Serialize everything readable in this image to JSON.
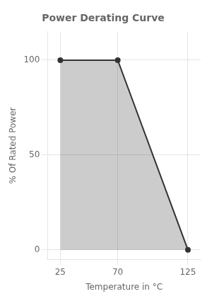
{
  "chart_data": {
    "type": "line",
    "title": "Power Derating Curve",
    "x": [
      25,
      70,
      125
    ],
    "values": [
      100,
      100,
      0
    ],
    "color": "#333333",
    "xlabel": "Temperature in °C",
    "ylabel": "% Of Rated Power",
    "xlim": [
      15,
      135
    ],
    "xticks": [
      25,
      70,
      125
    ],
    "ylim": [
      -5,
      115
    ],
    "yticks": [
      0,
      50,
      100
    ],
    "grid": true
  }
}
